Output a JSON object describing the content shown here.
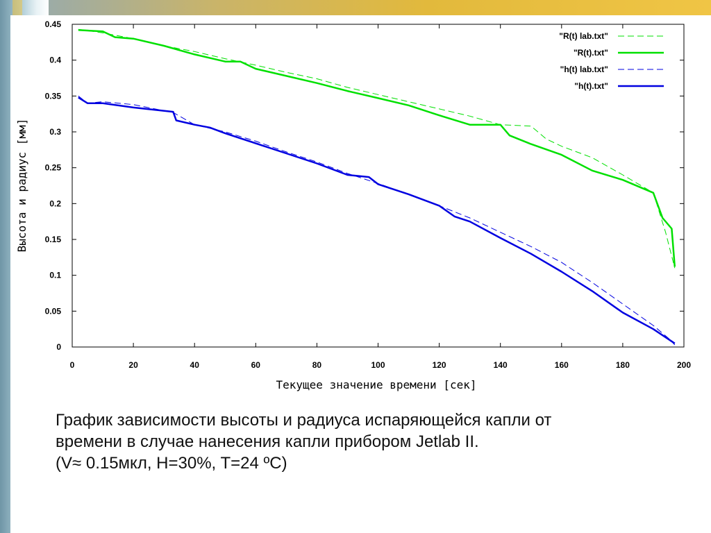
{
  "chart_data": {
    "type": "line",
    "xlabel": "Текущее значение времени [сек]",
    "ylabel": "Высота и радиус [мм]",
    "xlim": [
      0,
      200
    ],
    "ylim": [
      0,
      0.45
    ],
    "x_ticks": [
      "0",
      "20",
      "40",
      "60",
      "80",
      "100",
      "120",
      "140",
      "160",
      "180",
      "200"
    ],
    "y_ticks": [
      "0",
      "0.05",
      "0.1",
      "0.15",
      "0.2",
      "0.25",
      "0.3",
      "0.35",
      "0.4",
      "0.45"
    ],
    "grid": false,
    "legend_position": "top-right",
    "series": [
      {
        "name": "\"R(t) lab.txt\"",
        "color": "#00e000",
        "style": "dashed",
        "x": [
          2,
          10,
          20,
          30,
          40,
          50,
          60,
          70,
          80,
          90,
          100,
          110,
          120,
          130,
          140,
          150,
          155,
          160,
          170,
          180,
          190,
          194,
          197
        ],
        "y": [
          0.443,
          0.438,
          0.43,
          0.42,
          0.412,
          0.402,
          0.393,
          0.383,
          0.374,
          0.362,
          0.352,
          0.342,
          0.332,
          0.322,
          0.31,
          0.308,
          0.29,
          0.28,
          0.264,
          0.24,
          0.215,
          0.16,
          0.11
        ]
      },
      {
        "name": "\"R(t).txt\"",
        "color": "#00e000",
        "style": "solid",
        "x": [
          2,
          10,
          14,
          20,
          30,
          40,
          50,
          55,
          60,
          70,
          80,
          90,
          100,
          110,
          120,
          130,
          140,
          143,
          150,
          160,
          170,
          180,
          190,
          193,
          196,
          197
        ],
        "y": [
          0.442,
          0.44,
          0.432,
          0.43,
          0.42,
          0.408,
          0.398,
          0.398,
          0.388,
          0.378,
          0.368,
          0.357,
          0.347,
          0.337,
          0.323,
          0.31,
          0.31,
          0.295,
          0.283,
          0.268,
          0.246,
          0.233,
          0.215,
          0.18,
          0.165,
          0.112
        ]
      },
      {
        "name": "\"h(t) lab.txt\"",
        "color": "#0000e0",
        "style": "dashed",
        "x": [
          2,
          5,
          10,
          20,
          33,
          40,
          50,
          60,
          70,
          80,
          90,
          100,
          110,
          120,
          130,
          140,
          150,
          160,
          170,
          180,
          190,
          195,
          197
        ],
        "y": [
          0.35,
          0.34,
          0.342,
          0.338,
          0.327,
          0.31,
          0.3,
          0.287,
          0.272,
          0.258,
          0.242,
          0.228,
          0.213,
          0.197,
          0.18,
          0.16,
          0.14,
          0.118,
          0.09,
          0.06,
          0.03,
          0.012,
          0.003
        ]
      },
      {
        "name": "\"h(t).txt\"",
        "color": "#0000e0",
        "style": "solid",
        "x": [
          2,
          5,
          10,
          20,
          33,
          34,
          40,
          45,
          50,
          60,
          70,
          80,
          90,
          97,
          100,
          110,
          120,
          125,
          130,
          140,
          150,
          160,
          170,
          180,
          190,
          197
        ],
        "y": [
          0.348,
          0.34,
          0.34,
          0.334,
          0.328,
          0.316,
          0.31,
          0.306,
          0.298,
          0.284,
          0.27,
          0.256,
          0.24,
          0.237,
          0.227,
          0.213,
          0.197,
          0.182,
          0.175,
          0.152,
          0.13,
          0.105,
          0.078,
          0.048,
          0.025,
          0.005
        ]
      }
    ]
  },
  "caption": {
    "line1": "График зависимости высоты и радиуса испаряющейся капли от",
    "line2": "времени в случае нанесения капли прибором Jetlab II.",
    "line3": "(V≈ 0.15мкл, H=30%, T=24 ºC)"
  }
}
